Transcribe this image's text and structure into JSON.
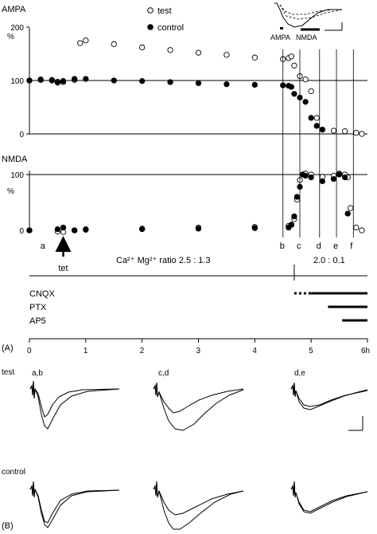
{
  "figure": {
    "panel_a_label": "(A)",
    "panel_b_label": "(B)",
    "inset": {
      "ampa_label": "AMPA",
      "nmda_label": "NMDA"
    },
    "legend": {
      "test": {
        "label": "test",
        "marker": "open-circle"
      },
      "control": {
        "label": "control",
        "marker": "filled-circle"
      }
    },
    "time_points": [
      "a",
      "b",
      "c",
      "d",
      "e",
      "f"
    ],
    "tet_label": "tet",
    "ratio_before": "Ca²⁺ Mg²⁺ ratio  2.5 : 1.3",
    "ratio_after": "2.0 : 0.1",
    "drugs": [
      "CNQX",
      "PTX",
      "AP5"
    ],
    "row_labels": [
      "test",
      "control"
    ],
    "trace_labels": [
      "a,b",
      "c,d",
      "d,e"
    ],
    "colors": {
      "ink": "#000000",
      "background": "#ffffff"
    }
  },
  "chart_data": [
    {
      "type": "scatter",
      "panel": "AMPA",
      "title": "AMPA",
      "ylabel": "%",
      "xlabel": "",
      "xlim": [
        0,
        6
      ],
      "ylim": [
        0,
        200
      ],
      "yticks": [
        0,
        100,
        200
      ],
      "series": [
        {
          "name": "test",
          "marker": "open",
          "x": [
            0,
            0.2,
            0.4,
            0.5,
            0.6,
            0.8,
            0.9,
            1.0,
            1.5,
            2.0,
            2.5,
            3.0,
            3.5,
            4.0,
            4.5,
            4.6,
            4.65,
            4.7,
            4.8,
            4.9,
            5.0,
            5.1,
            5.2,
            5.4,
            5.6,
            5.8,
            5.9
          ],
          "y": [
            100,
            101,
            100,
            98,
            97,
            101,
            170,
            175,
            168,
            162,
            157,
            152,
            148,
            143,
            140,
            142,
            145,
            128,
            108,
            102,
            80,
            30,
            8,
            6,
            5,
            2,
            0
          ]
        },
        {
          "name": "control",
          "marker": "filled",
          "x": [
            0,
            0.2,
            0.4,
            0.5,
            0.6,
            0.8,
            1.0,
            1.5,
            2.0,
            2.5,
            3.0,
            3.5,
            4.0,
            4.5,
            4.6,
            4.65,
            4.7,
            4.8,
            4.9,
            5.0,
            5.1,
            5.2
          ],
          "y": [
            100,
            102,
            101,
            96,
            99,
            103,
            103,
            100,
            99,
            97,
            95,
            93,
            92,
            91,
            90,
            88,
            75,
            68,
            60,
            30,
            15,
            8
          ]
        }
      ]
    },
    {
      "type": "scatter",
      "panel": "NMDA",
      "title": "NMDA",
      "ylabel": "%",
      "xlabel": "",
      "xlim": [
        0,
        6
      ],
      "ylim": [
        0,
        100
      ],
      "yticks": [
        0,
        100
      ],
      "series": [
        {
          "name": "test",
          "marker": "open",
          "x": [
            0,
            0.5,
            0.6,
            0.8,
            1.0,
            2.0,
            3.0,
            4.0,
            4.6,
            4.65,
            4.7,
            4.75,
            4.8,
            4.85,
            4.9,
            5.0,
            5.2,
            5.4,
            5.5,
            5.6,
            5.65,
            5.7,
            5.8,
            5.9
          ],
          "y": [
            0,
            -2,
            -3,
            0,
            2,
            3,
            5,
            6,
            8,
            10,
            20,
            55,
            90,
            100,
            102,
            100,
            96,
            98,
            102,
            100,
            95,
            40,
            5,
            0
          ]
        },
        {
          "name": "control",
          "marker": "filled",
          "x": [
            0,
            0.5,
            0.6,
            0.8,
            1.0,
            2.0,
            3.0,
            4.0,
            4.6,
            4.65,
            4.7,
            4.75,
            4.8,
            4.85,
            4.9,
            5.0,
            5.2,
            5.4,
            5.5,
            5.6,
            5.65
          ],
          "y": [
            0,
            2,
            5,
            0,
            1,
            2,
            3,
            4,
            5,
            10,
            25,
            60,
            78,
            100,
            98,
            95,
            88,
            92,
            100,
            95,
            30
          ]
        }
      ]
    },
    {
      "type": "line",
      "panel": "time-axis",
      "xlabel": "h",
      "xlim": [
        0,
        6
      ],
      "xticks": [
        0,
        1,
        2,
        3,
        4,
        5,
        6
      ],
      "tick_labels": [
        "0",
        "1",
        "2",
        "3",
        "4",
        "5",
        "6h"
      ],
      "tet_time": 0.6,
      "time_point_times": [
        0.25,
        4.5,
        4.8,
        5.15,
        5.45,
        5.75
      ],
      "drug_start": {
        "CNQX_dotted": 4.7,
        "CNQX": 5.0,
        "PTX": 5.3,
        "AP5": 5.55
      }
    }
  ]
}
